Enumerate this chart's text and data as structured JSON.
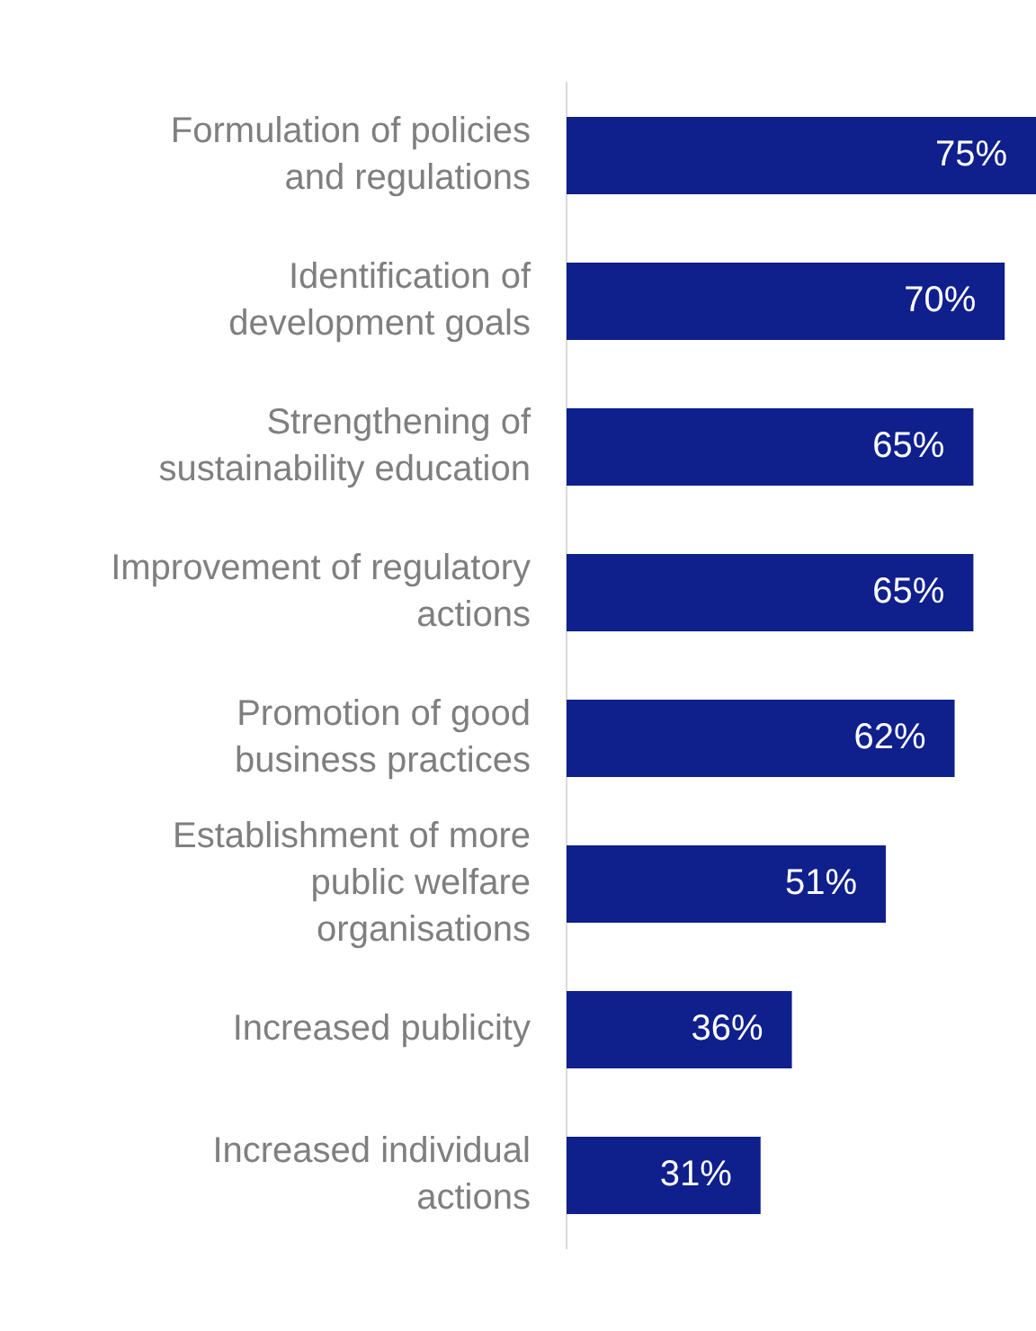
{
  "chart_data": {
    "type": "bar",
    "orientation": "horizontal",
    "categories": [
      "Formulation of policies\nand regulations",
      "Identification of\ndevelopment goals",
      "Strengthening of\nsustainability education",
      "Improvement of regulatory\nactions",
      "Promotion of good\nbusiness practices",
      "Establishment of more\npublic welfare\norganisations",
      "Increased publicity",
      "Increased individual\nactions"
    ],
    "values": [
      75,
      70,
      65,
      65,
      62,
      51,
      36,
      31
    ],
    "value_labels": [
      "75%",
      "70%",
      "65%",
      "65%",
      "62%",
      "51%",
      "36%",
      "31%"
    ],
    "color": "#0f1f8c"
  }
}
